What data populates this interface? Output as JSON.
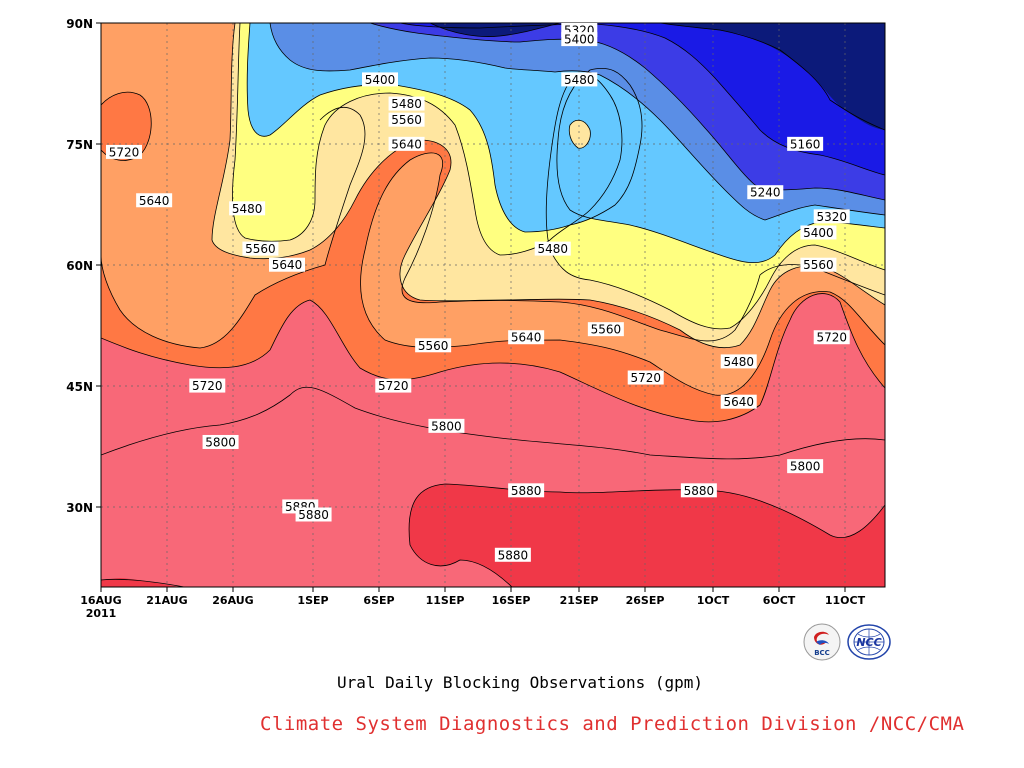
{
  "chart_data": {
    "type": "heatmap",
    "title": "Ural Daily Blocking Observations (gpm)",
    "x_ticks": [
      "16AUG",
      "21AUG",
      "26AUG",
      "1SEP",
      "6SEP",
      "11SEP",
      "16SEP",
      "21SEP",
      "26SEP",
      "1OCT",
      "6OCT",
      "11OCT"
    ],
    "x_year": "2011",
    "y_ticks": [
      "90N",
      "75N",
      "60N",
      "45N",
      "30N"
    ],
    "ylim": [
      20,
      90
    ],
    "contour_levels": [
      5160,
      5240,
      5320,
      5400,
      5480,
      5560,
      5640,
      5720,
      5800,
      5880
    ],
    "fill_colors": {
      "below_5160": "#0c1a7a",
      "5160": "#1a1ae6",
      "5240": "#3c3ce6",
      "5320": "#5a8ee6",
      "5400": "#64c8ff",
      "5480": "#ffff80",
      "5560": "#ffe6a0",
      "5640": "#ffa064",
      "5720": "#ff7844",
      "5800": "#f86878",
      "5880": "#f03848"
    },
    "contour_labels": [
      {
        "text": "5320",
        "date": "21SEP",
        "lat": 90
      },
      {
        "text": "5400",
        "date": "21SEP",
        "lat": 88
      },
      {
        "text": "5480",
        "date": "21SEP",
        "lat": 83
      },
      {
        "text": "5400",
        "date": "6SEP",
        "lat": 83
      },
      {
        "text": "5480",
        "date": "8SEP",
        "lat": 80
      },
      {
        "text": "5560",
        "date": "8SEP",
        "lat": 78
      },
      {
        "text": "5640",
        "date": "8SEP",
        "lat": 75
      },
      {
        "text": "5160",
        "date": "8OCT",
        "lat": 75
      },
      {
        "text": "5720",
        "date": "17AUG",
        "lat": 74
      },
      {
        "text": "5640",
        "date": "20AUG",
        "lat": 68
      },
      {
        "text": "5240",
        "date": "5OCT",
        "lat": 69
      },
      {
        "text": "5480",
        "date": "27AUG",
        "lat": 67
      },
      {
        "text": "5320",
        "date": "10OCT",
        "lat": 66
      },
      {
        "text": "5400",
        "date": "9OCT",
        "lat": 64
      },
      {
        "text": "5560",
        "date": "28AUG",
        "lat": 62
      },
      {
        "text": "5480",
        "date": "19SEP",
        "lat": 62
      },
      {
        "text": "5640",
        "date": "30AUG",
        "lat": 60
      },
      {
        "text": "5560",
        "date": "9OCT",
        "lat": 60
      },
      {
        "text": "5640",
        "date": "17SEP",
        "lat": 51
      },
      {
        "text": "5560",
        "date": "23SEP",
        "lat": 52
      },
      {
        "text": "5560",
        "date": "10SEP",
        "lat": 50
      },
      {
        "text": "5720",
        "date": "10OCT",
        "lat": 51
      },
      {
        "text": "5480",
        "date": "3OCT",
        "lat": 48
      },
      {
        "text": "5720",
        "date": "24AUG",
        "lat": 45
      },
      {
        "text": "5720",
        "date": "7SEP",
        "lat": 45
      },
      {
        "text": "5720",
        "date": "26SEP",
        "lat": 46
      },
      {
        "text": "5640",
        "date": "3OCT",
        "lat": 43
      },
      {
        "text": "5800",
        "date": "11SEP",
        "lat": 40
      },
      {
        "text": "5800",
        "date": "25AUG",
        "lat": 38
      },
      {
        "text": "5800",
        "date": "8OCT",
        "lat": 35
      },
      {
        "text": "5880",
        "date": "17SEP",
        "lat": 32
      },
      {
        "text": "5880",
        "date": "30SEP",
        "lat": 32
      },
      {
        "text": "5880",
        "date": "31AUG",
        "lat": 30
      },
      {
        "text": "5880",
        "date": "1SEP",
        "lat": 29
      },
      {
        "text": "5880",
        "date": "16SEP",
        "lat": 24
      }
    ]
  },
  "caption": "Ural Daily Blocking Observations (gpm)",
  "credit": "Climate System Diagnostics and Prediction Division /NCC/CMA",
  "logos": [
    {
      "name": "bcc-logo",
      "text": "BCC"
    },
    {
      "name": "ncc-logo",
      "text": "NCC"
    }
  ]
}
